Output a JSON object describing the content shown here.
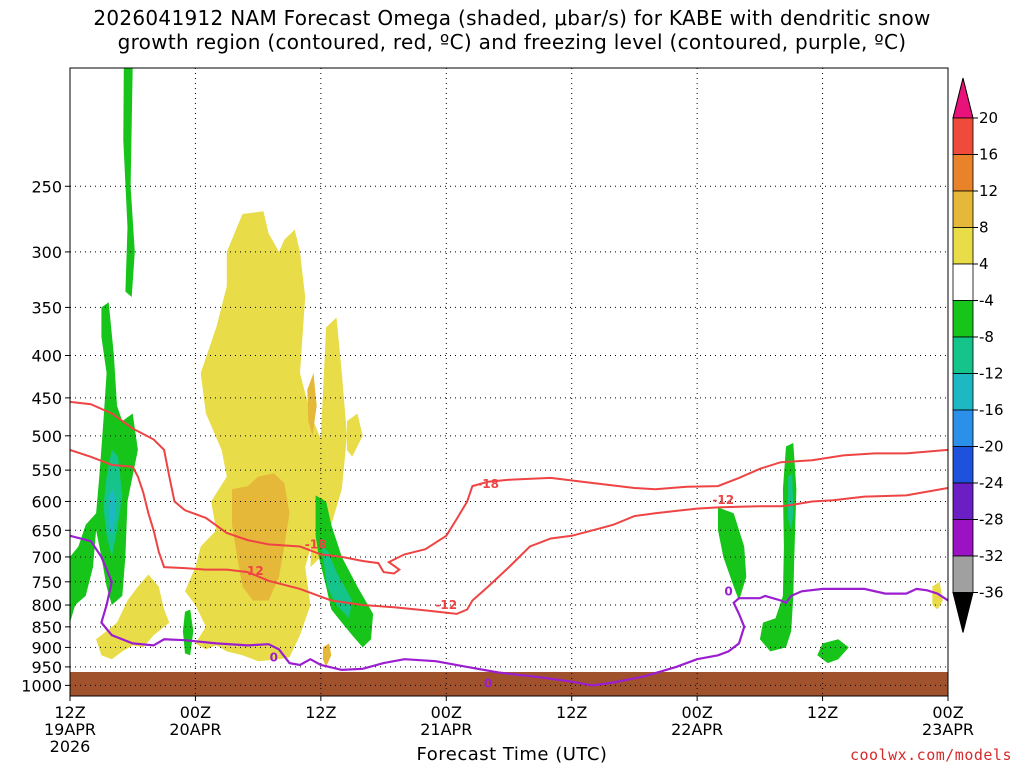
{
  "title": {
    "line1": "2026041912 NAM Forecast Omega (shaded, μbar/s) for KABE with dendritic snow",
    "line2": "growth region (contoured, red, ºC) and freezing level (contoured, purple, ºC)"
  },
  "credit": "coolwx.com/models",
  "chart_data": {
    "type": "time-height cross section",
    "xlabel": "Forecast Time (UTC)",
    "ylabel": "",
    "x_ticks": [
      {
        "label": [
          "12Z",
          "19APR",
          "2026"
        ]
      },
      {
        "label": [
          "00Z",
          "20APR"
        ]
      },
      {
        "label": [
          "12Z"
        ]
      },
      {
        "label": [
          "00Z",
          "21APR"
        ]
      },
      {
        "label": [
          "12Z"
        ]
      },
      {
        "label": [
          "00Z",
          "22APR"
        ]
      },
      {
        "label": [
          "12Z"
        ]
      },
      {
        "label": [
          "00Z",
          "23APR"
        ]
      }
    ],
    "x_range_hours": [
      0,
      84
    ],
    "y_scale": "log pressure (inverted)",
    "y_range_hPa": [
      1030,
      180
    ],
    "y_ticks": [
      250,
      300,
      350,
      400,
      450,
      500,
      550,
      600,
      650,
      700,
      750,
      800,
      850,
      900,
      950,
      1000
    ],
    "grid": true,
    "colorbar": {
      "ticks": [
        20,
        16,
        12,
        8,
        4,
        -4,
        -8,
        -12,
        -16,
        -20,
        -24,
        -28,
        -32,
        -36
      ],
      "colors": [
        "#e8127a",
        "#f04a3a",
        "#e9832a",
        "#e6b83a",
        "#e8dc48",
        "#ffffff",
        "#16c41a",
        "#14c48a",
        "#1eb8c4",
        "#2a90ea",
        "#1e52dc",
        "#6a1ec4",
        "#9a12c4",
        "#a0a0a0",
        "#000000"
      ]
    },
    "contour_labels": {
      "red": [
        "-18",
        "-12",
        "-18",
        "-12",
        "-12"
      ],
      "purple": [
        "0",
        "0",
        "0"
      ]
    },
    "red_contours": [
      {
        "level": -18,
        "points": [
          [
            0,
            455
          ],
          [
            2,
            458
          ],
          [
            4,
            470
          ],
          [
            6,
            490
          ],
          [
            8,
            505
          ],
          [
            9,
            520
          ],
          [
            9.5,
            560
          ],
          [
            10,
            600
          ],
          [
            11,
            615
          ],
          [
            13,
            628
          ],
          [
            15,
            655
          ],
          [
            17,
            668
          ],
          [
            19,
            676
          ],
          [
            22,
            680
          ],
          [
            24,
            695
          ],
          [
            26,
            700
          ],
          [
            28,
            708
          ],
          [
            29.5,
            712
          ],
          [
            30,
            730
          ],
          [
            31,
            733
          ],
          [
            31.5,
            725
          ],
          [
            30.5,
            710
          ],
          [
            32,
            695
          ],
          [
            34,
            685
          ],
          [
            36,
            660
          ],
          [
            37,
            630
          ],
          [
            38,
            600
          ],
          [
            38.5,
            575
          ],
          [
            40,
            568
          ],
          [
            42,
            565
          ],
          [
            46,
            562
          ],
          [
            50,
            570
          ],
          [
            54,
            578
          ],
          [
            56,
            580
          ],
          [
            59,
            576
          ],
          [
            62,
            575
          ],
          [
            64,
            562
          ],
          [
            66,
            548
          ],
          [
            68,
            538
          ],
          [
            71,
            535
          ],
          [
            74,
            528
          ],
          [
            77,
            525
          ],
          [
            80,
            525
          ],
          [
            84,
            520
          ]
        ]
      },
      {
        "level": -12,
        "points": [
          [
            0,
            520
          ],
          [
            2,
            530
          ],
          [
            4,
            542
          ],
          [
            6,
            545
          ],
          [
            6.5,
            560
          ],
          [
            7,
            585
          ],
          [
            7.5,
            620
          ],
          [
            8,
            650
          ],
          [
            8.5,
            690
          ],
          [
            9,
            720
          ],
          [
            11,
            722
          ],
          [
            13,
            725
          ],
          [
            15,
            725
          ],
          [
            17,
            730
          ],
          [
            19,
            748
          ],
          [
            22,
            765
          ],
          [
            25,
            790
          ],
          [
            28,
            800
          ],
          [
            31,
            805
          ],
          [
            34,
            812
          ],
          [
            37,
            820
          ],
          [
            38,
            810
          ],
          [
            38.5,
            790
          ],
          [
            40,
            760
          ],
          [
            42,
            720
          ],
          [
            44,
            680
          ],
          [
            46,
            665
          ],
          [
            48,
            660
          ],
          [
            50,
            650
          ],
          [
            52,
            640
          ],
          [
            54,
            625
          ],
          [
            56,
            620
          ],
          [
            58,
            616
          ],
          [
            60,
            612
          ],
          [
            62,
            610
          ],
          [
            64,
            609
          ],
          [
            66,
            608
          ],
          [
            68,
            608
          ],
          [
            69,
            606
          ],
          [
            71,
            600
          ],
          [
            73,
            598
          ],
          [
            76,
            592
          ],
          [
            80,
            590
          ],
          [
            84,
            578
          ]
        ]
      }
    ],
    "purple_contour": {
      "level": 0,
      "points": [
        [
          0,
          660
        ],
        [
          2,
          670
        ],
        [
          3,
          700
        ],
        [
          4,
          750
        ],
        [
          3.5,
          800
        ],
        [
          3,
          840
        ],
        [
          4,
          870
        ],
        [
          6,
          890
        ],
        [
          8,
          895
        ],
        [
          9,
          880
        ],
        [
          11,
          882
        ],
        [
          14,
          890
        ],
        [
          17,
          895
        ],
        [
          19,
          892
        ],
        [
          20,
          905
        ],
        [
          21,
          940
        ],
        [
          22,
          945
        ],
        [
          23,
          930
        ],
        [
          24,
          945
        ],
        [
          26,
          958
        ],
        [
          28,
          955
        ],
        [
          30,
          940
        ],
        [
          32,
          930
        ],
        [
          35,
          935
        ],
        [
          38,
          950
        ],
        [
          41,
          965
        ],
        [
          45,
          978
        ],
        [
          48,
          990
        ],
        [
          50,
          1000
        ],
        [
          52,
          992
        ],
        [
          55,
          975
        ],
        [
          58,
          950
        ],
        [
          60,
          930
        ],
        [
          62,
          920
        ],
        [
          63,
          910
        ],
        [
          64,
          890
        ],
        [
          64.5,
          850
        ],
        [
          64,
          820
        ],
        [
          63.5,
          795
        ],
        [
          64,
          785
        ],
        [
          66,
          785
        ],
        [
          66.5,
          780
        ],
        [
          68,
          790
        ],
        [
          68.5,
          795
        ],
        [
          69,
          780
        ],
        [
          70,
          770
        ],
        [
          72,
          765
        ],
        [
          74,
          765
        ],
        [
          76,
          765
        ],
        [
          78,
          775
        ],
        [
          80,
          775
        ],
        [
          81,
          765
        ],
        [
          82,
          768
        ],
        [
          83,
          775
        ],
        [
          84,
          790
        ]
      ]
    }
  }
}
